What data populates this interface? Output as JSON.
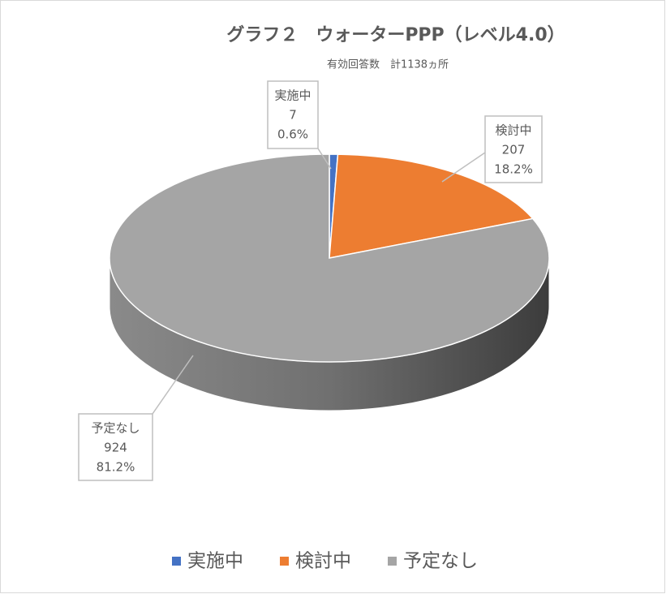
{
  "chart_data": {
    "type": "pie",
    "title": "グラフ２　ウォーターPPP（レベル4.0）",
    "subtitle": "有効回答数　計1138ヵ所",
    "categories": [
      "実施中",
      "検討中",
      "予定なし"
    ],
    "values": [
      7,
      207,
      924
    ],
    "percent_labels": [
      "0.6%",
      "18.2%",
      "81.2%"
    ],
    "colors": [
      "#4472c4",
      "#ed7d31",
      "#a5a5a5"
    ],
    "legend": "bottom"
  }
}
